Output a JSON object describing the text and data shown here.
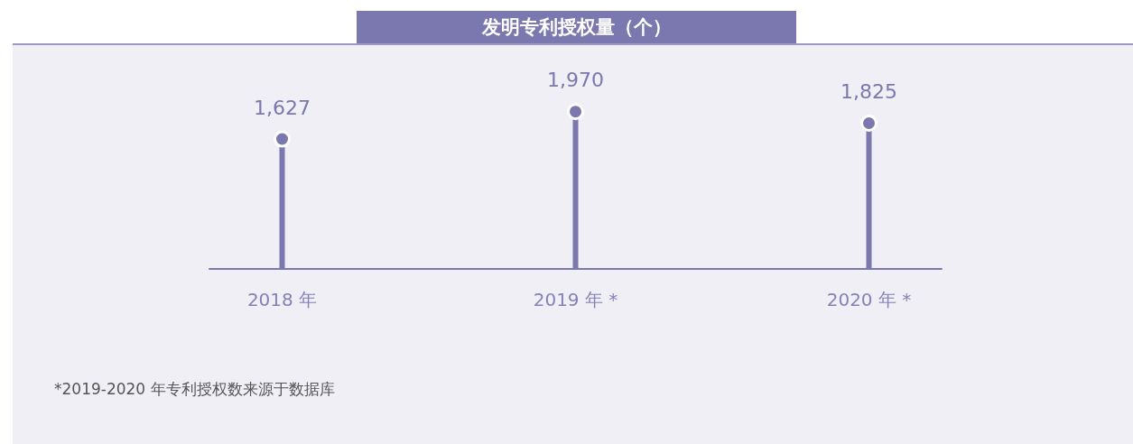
{
  "chart_data": {
    "type": "lollipop",
    "title": "发明专利授权量（个）",
    "categories": [
      "2018 年",
      "2019 年 *",
      "2020 年 *"
    ],
    "values": [
      1627,
      1970,
      1825
    ],
    "color": "#7b78b0",
    "value_labels": [
      "1,627",
      "1,970",
      "1,825"
    ],
    "tick_labels": "x",
    "legend": false,
    "marker": "circle",
    "annotations": [
      "*2019-2020 年专利授权数来源于数据库"
    ]
  }
}
